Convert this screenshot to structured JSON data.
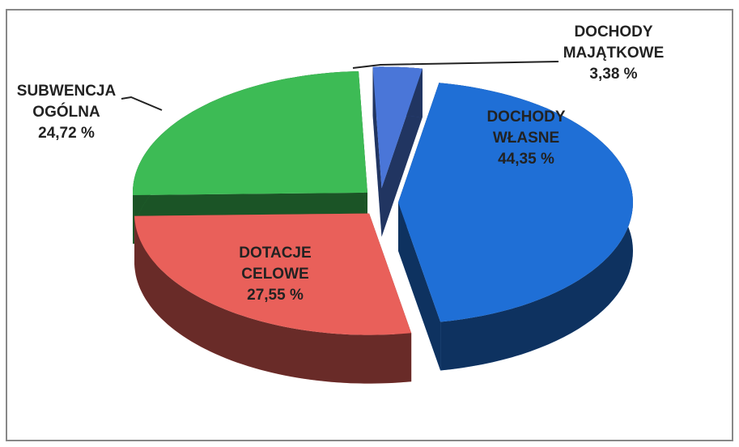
{
  "chart_data": {
    "type": "pie",
    "categories": [
      "DOCHODY WŁASNE",
      "DOTACJE CELOWE",
      "SUBWENCJA OGÓLNA",
      "DOCHODY MAJĄTKOWE"
    ],
    "values": [
      44.35,
      27.55,
      24.72,
      3.38
    ],
    "value_labels": [
      "44,35 %",
      "27,55 %",
      "24,72 %",
      "3,38 %"
    ],
    "colors": [
      "#1f6fd6",
      "#e9605a",
      "#3dbb55",
      "#4a76d8"
    ]
  }
}
